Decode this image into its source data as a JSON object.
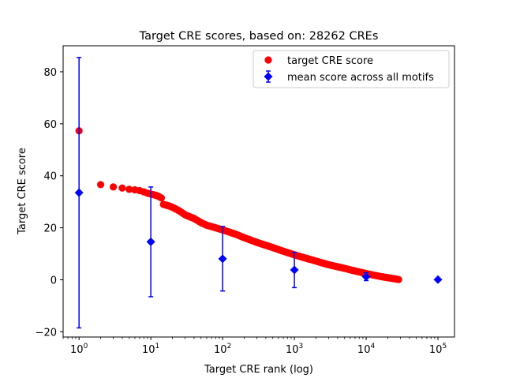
{
  "chart_data": {
    "type": "scatter",
    "title": "Target CRE scores, based on: 28262 CREs",
    "xlabel": "Target CRE rank (log)",
    "ylabel": "Target CRE score",
    "xscale": "log",
    "xlim": [
      0.6,
      170000
    ],
    "ylim": [
      -22,
      90
    ],
    "grid": false,
    "legend_position": "top-right",
    "x_ticks": [
      {
        "value": 1,
        "base": "10",
        "exp": "0"
      },
      {
        "value": 10,
        "base": "10",
        "exp": "1"
      },
      {
        "value": 100,
        "base": "10",
        "exp": "2"
      },
      {
        "value": 1000,
        "base": "10",
        "exp": "3"
      },
      {
        "value": 10000,
        "base": "10",
        "exp": "4"
      },
      {
        "value": 100000,
        "base": "10",
        "exp": "5"
      }
    ],
    "y_ticks": [
      {
        "value": -20,
        "label": "−20"
      },
      {
        "value": 0,
        "label": "0"
      },
      {
        "value": 20,
        "label": "20"
      },
      {
        "value": 40,
        "label": "40"
      },
      {
        "value": 60,
        "label": "60"
      },
      {
        "value": 80,
        "label": "80"
      }
    ],
    "series": [
      {
        "name": "target CRE score",
        "marker": "circle",
        "color": "#ff0000",
        "points": [
          [
            1,
            57.3
          ],
          [
            2,
            36.6
          ],
          [
            3,
            35.7
          ],
          [
            4,
            35.3
          ],
          [
            5,
            34.8
          ],
          [
            6,
            34.6
          ],
          [
            7,
            34.3
          ],
          [
            8,
            33.8
          ],
          [
            9,
            33.3
          ],
          [
            10,
            33.0
          ],
          [
            11,
            32.7
          ],
          [
            12,
            32.4
          ],
          [
            13,
            32.0
          ],
          [
            14,
            31.5
          ],
          [
            15,
            29.0
          ],
          [
            16,
            28.8
          ],
          [
            18,
            28.4
          ],
          [
            20,
            27.9
          ],
          [
            25,
            26.5
          ],
          [
            30,
            25.0
          ],
          [
            40,
            23.6
          ],
          [
            50,
            22.0
          ],
          [
            60,
            21.0
          ],
          [
            80,
            20.0
          ],
          [
            100,
            19.2
          ],
          [
            150,
            17.6
          ],
          [
            200,
            16.2
          ],
          [
            300,
            14.4
          ],
          [
            500,
            12.4
          ],
          [
            700,
            11.0
          ],
          [
            1000,
            9.6
          ],
          [
            1500,
            8.2
          ],
          [
            2000,
            7.2
          ],
          [
            3000,
            5.8
          ],
          [
            5000,
            4.4
          ],
          [
            7000,
            3.4
          ],
          [
            10000,
            2.4
          ],
          [
            15000,
            1.4
          ],
          [
            20000,
            0.8
          ],
          [
            25000,
            0.4
          ],
          [
            28262,
            0.1
          ]
        ]
      },
      {
        "name": "mean score across all motifs",
        "marker": "diamond",
        "color": "#0000ff",
        "points": [
          {
            "x": 1,
            "y": 33.5,
            "ylow": -18.5,
            "yhigh": 85.5
          },
          {
            "x": 10,
            "y": 14.6,
            "ylow": -6.5,
            "yhigh": 35.7
          },
          {
            "x": 100,
            "y": 8.1,
            "ylow": -4.3,
            "yhigh": 20.5
          },
          {
            "x": 1000,
            "y": 3.8,
            "ylow": -3.0,
            "yhigh": 10.6
          },
          {
            "x": 10000,
            "y": 1.2,
            "ylow": -0.3,
            "yhigh": 2.7
          },
          {
            "x": 100000,
            "y": 0.1,
            "ylow": 0.1,
            "yhigh": 0.1
          }
        ]
      }
    ]
  }
}
